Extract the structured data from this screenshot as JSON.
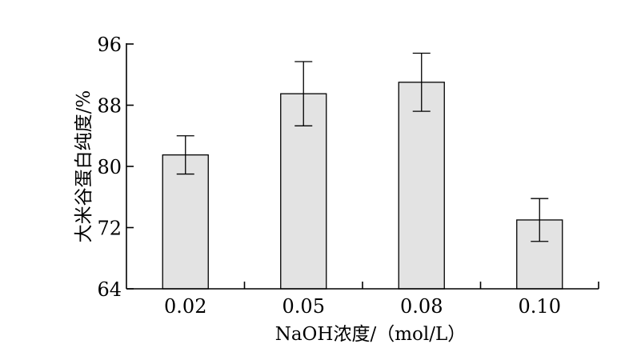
{
  "chart_data": {
    "type": "bar",
    "categories": [
      "0.02",
      "0.05",
      "0.08",
      "0.10"
    ],
    "values": [
      81.5,
      89.5,
      91.0,
      73.0
    ],
    "error": [
      2.5,
      4.2,
      3.8,
      2.8
    ],
    "title": "",
    "xlabel": "NaOH浓度/（mol/L）",
    "ylabel": "大米谷蛋白纯度/%",
    "ylim": [
      64,
      96
    ],
    "yticks": [
      64,
      72,
      80,
      88,
      96
    ],
    "grid": false,
    "colors": {
      "bar_fill": "#e3e3e3",
      "bar_stroke": "#000000",
      "axis": "#000000"
    }
  }
}
